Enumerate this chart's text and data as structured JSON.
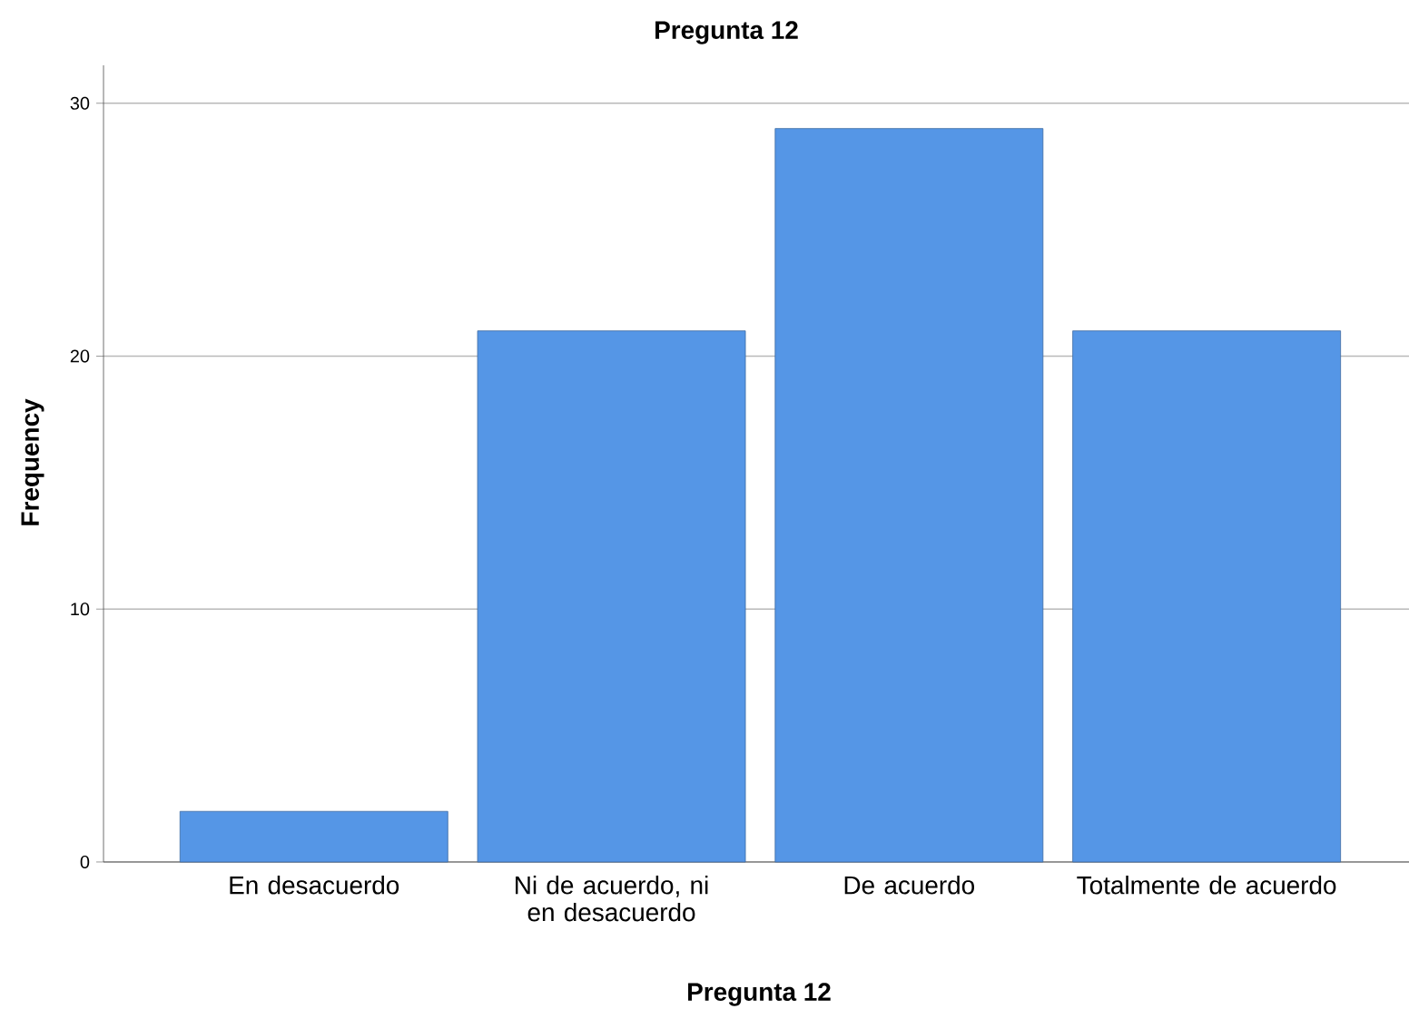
{
  "chart_data": {
    "type": "bar",
    "title": "Pregunta 12",
    "xlabel": "Pregunta 12",
    "ylabel": "Frequency",
    "categories": [
      "En desacuerdo",
      "Ni de acuerdo, ni en desacuerdo",
      "De acuerdo",
      "Totalmente de acuerdo"
    ],
    "values": [
      2,
      21,
      29,
      21
    ],
    "color": "#5596e6",
    "ylim": [
      0,
      31.5
    ],
    "yticks": [
      0,
      10,
      20,
      30
    ],
    "grid": "y"
  }
}
